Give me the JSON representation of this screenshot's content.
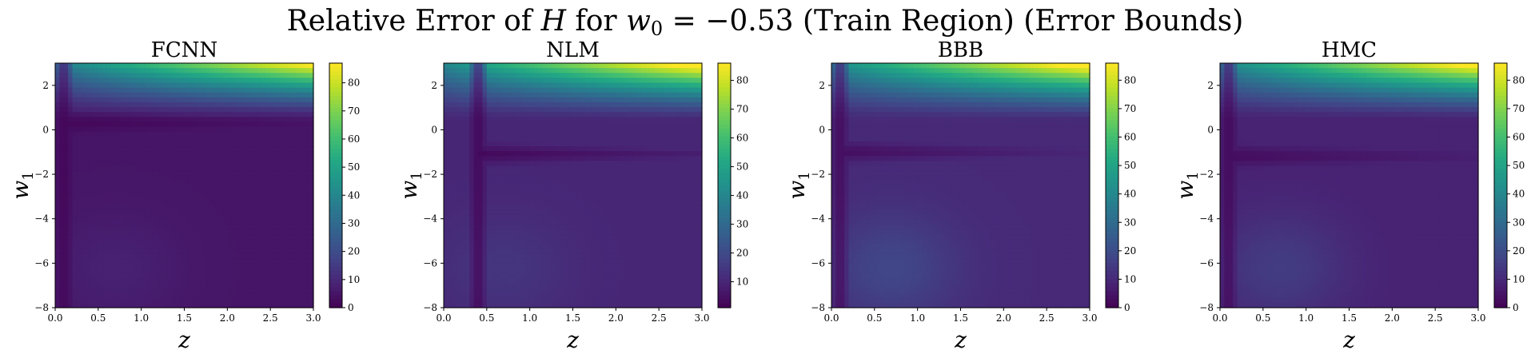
{
  "figure": {
    "title_prefix": "Relative Error of ",
    "title_var": "H",
    "title_for": " for ",
    "title_w": "w",
    "title_sub": "0",
    "title_eq": " = −0.53 (Train Region) (Error Bounds)"
  },
  "chart_data": [
    {
      "type": "heatmap",
      "title": "FCNN",
      "xlabel": "z",
      "ylabel": "w",
      "ylabel_sub": "1",
      "xlim": [
        0,
        3
      ],
      "ylim": [
        -8,
        3
      ],
      "xticks": [
        "0.0",
        "0.5",
        "1.0",
        "1.5",
        "2.0",
        "2.5",
        "3.0"
      ],
      "yticks": [
        "2",
        "0",
        "−2",
        "−4",
        "−6",
        "−8"
      ],
      "colorbar": {
        "range": [
          0,
          87
        ],
        "ticks": [
          "80",
          "70",
          "60",
          "50",
          "40",
          "30",
          "20",
          "10",
          "0"
        ],
        "tick_values": [
          80,
          70,
          60,
          50,
          40,
          30,
          20,
          10,
          0
        ]
      },
      "colormap": "viridis",
      "peak": {
        "z": 3.0,
        "w1": 3.0,
        "value": 87
      },
      "trough_curve": "near z≈0.1 for w1<0, bending to w1≈0.3 along z",
      "background_level": 5
    },
    {
      "type": "heatmap",
      "title": "NLM",
      "xlabel": "z",
      "ylabel": "w",
      "ylabel_sub": "1",
      "xlim": [
        0,
        3
      ],
      "ylim": [
        -8,
        3
      ],
      "xticks": [
        "0.0",
        "0.5",
        "1.0",
        "1.5",
        "2.0",
        "2.5",
        "3.0"
      ],
      "yticks": [
        "2",
        "0",
        "−2",
        "−4",
        "−6",
        "−8"
      ],
      "colorbar": {
        "range": [
          1,
          86
        ],
        "ticks": [
          "80",
          "70",
          "60",
          "50",
          "40",
          "30",
          "20",
          "10"
        ],
        "tick_values": [
          80,
          70,
          60,
          50,
          40,
          30,
          20,
          10
        ]
      },
      "colormap": "viridis",
      "peak": {
        "z": 3.0,
        "w1": 3.0,
        "value": 86
      },
      "trough_curve": "near z≈0.4 for w1<0, bending to w1≈-1.1 along z",
      "background_level": 10
    },
    {
      "type": "heatmap",
      "title": "BBB",
      "xlabel": "z",
      "ylabel": "w",
      "ylabel_sub": "1",
      "xlim": [
        0,
        3
      ],
      "ylim": [
        -8,
        3
      ],
      "xticks": [
        "0.0",
        "0.5",
        "1.0",
        "1.5",
        "2.0",
        "2.5",
        "3.0"
      ],
      "yticks": [
        "2",
        "0",
        "−2",
        "−4",
        "−6",
        "−8"
      ],
      "colorbar": {
        "range": [
          0,
          86
        ],
        "ticks": [
          "80",
          "70",
          "60",
          "50",
          "40",
          "30",
          "20",
          "10",
          "0"
        ],
        "tick_values": [
          80,
          70,
          60,
          50,
          40,
          30,
          20,
          10,
          0
        ]
      },
      "colormap": "viridis",
      "peak": {
        "z": 3.0,
        "w1": 3.0,
        "value": 86
      },
      "trough_curve": "near z≈0.1 for w1<0, bending to w1≈-1.0 along z",
      "background_level": 10
    },
    {
      "type": "heatmap",
      "title": "HMC",
      "xlabel": "z",
      "ylabel": "w",
      "ylabel_sub": "1",
      "xlim": [
        0,
        3
      ],
      "ylim": [
        -8,
        3
      ],
      "xticks": [
        "0.0",
        "0.5",
        "1.0",
        "1.5",
        "2.0",
        "2.5",
        "3.0"
      ],
      "yticks": [
        "2",
        "0",
        "−2",
        "−4",
        "−6",
        "−8"
      ],
      "colorbar": {
        "range": [
          0,
          86
        ],
        "ticks": [
          "80",
          "70",
          "60",
          "50",
          "40",
          "30",
          "20",
          "10",
          "0"
        ],
        "tick_values": [
          80,
          70,
          60,
          50,
          40,
          30,
          20,
          10,
          0
        ]
      },
      "colormap": "viridis",
      "peak": {
        "z": 3.0,
        "w1": 3.0,
        "value": 86
      },
      "trough_curve": "near z≈0.1 for w1<0, bending to w1≈-1.2 along z",
      "background_level": 8
    }
  ]
}
